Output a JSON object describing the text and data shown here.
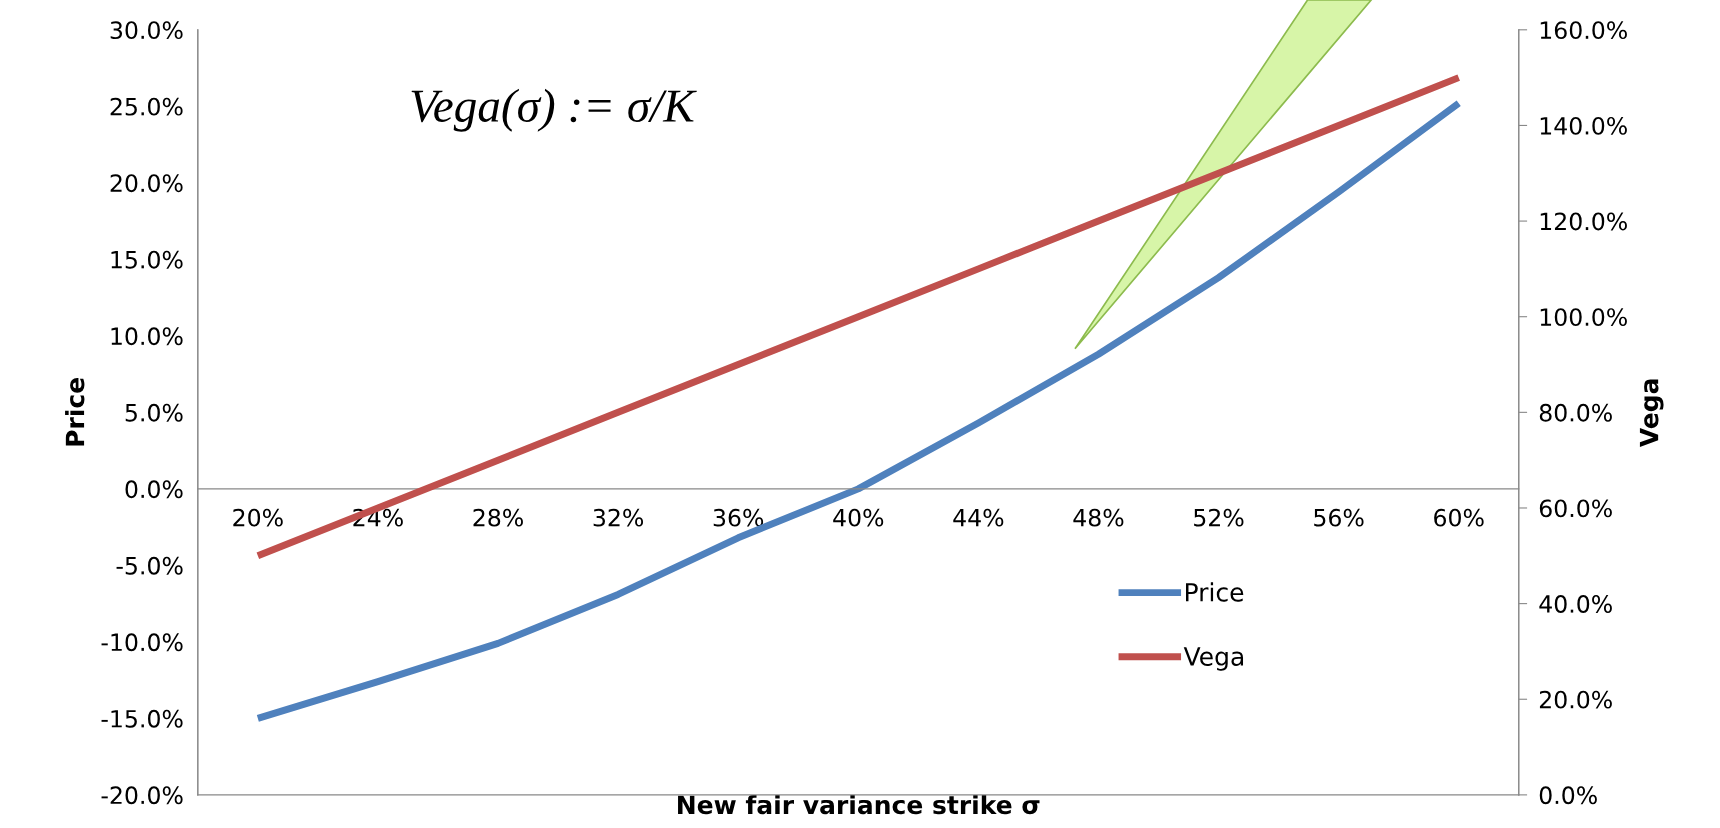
{
  "chart_data": {
    "type": "line",
    "xlabel": "New fair variance strike σ",
    "ylabel": "Price",
    "y2label": "Vega",
    "categories": [
      "20%",
      "24%",
      "28%",
      "32%",
      "36%",
      "40%",
      "44%",
      "48%",
      "52%",
      "56%",
      "60%"
    ],
    "series": [
      {
        "name": "Price",
        "color": "#4f81bd",
        "values": [
          -15.0,
          -12.6,
          -10.1,
          -6.9,
          -3.2,
          0.0,
          4.3,
          8.8,
          13.8,
          19.4,
          25.2
        ]
      },
      {
        "name": "Vega",
        "color": "#c0504d",
        "axis": "y2",
        "values": [
          50,
          60,
          70,
          80,
          90,
          100,
          110,
          120,
          130,
          140,
          150
        ]
      }
    ],
    "ylim": [
      -20,
      30
    ],
    "yticks": [
      {
        "value": -20,
        "label": "-20.0%"
      },
      {
        "value": -15,
        "label": "-15.0%"
      },
      {
        "value": -10,
        "label": "-10.0%"
      },
      {
        "value": -5,
        "label": "-5.0%"
      },
      {
        "value": 0,
        "label": "0.0%"
      },
      {
        "value": 5,
        "label": "5.0%"
      },
      {
        "value": 10,
        "label": "10.0%"
      },
      {
        "value": 15,
        "label": "15.0%"
      },
      {
        "value": 20,
        "label": "20.0%"
      },
      {
        "value": 25,
        "label": "25.0%"
      },
      {
        "value": 30,
        "label": "30.0%"
      }
    ],
    "y2lim": [
      0,
      160
    ],
    "y2ticks": [
      {
        "value": 0,
        "label": "0.0%"
      },
      {
        "value": 20,
        "label": "20.0%"
      },
      {
        "value": 40,
        "label": "40.0%"
      },
      {
        "value": 60,
        "label": "60.0%"
      },
      {
        "value": 80,
        "label": "80.0%"
      },
      {
        "value": 100,
        "label": "100.0%"
      },
      {
        "value": 120,
        "label": "120.0%"
      },
      {
        "value": 140,
        "label": "140.0%"
      },
      {
        "value": 160,
        "label": "160.0%"
      }
    ],
    "annotations": [
      "Vega(σ) := σ/K"
    ],
    "legend": "bottom right",
    "grid": false,
    "marker": "none",
    "line_style": "solid"
  }
}
